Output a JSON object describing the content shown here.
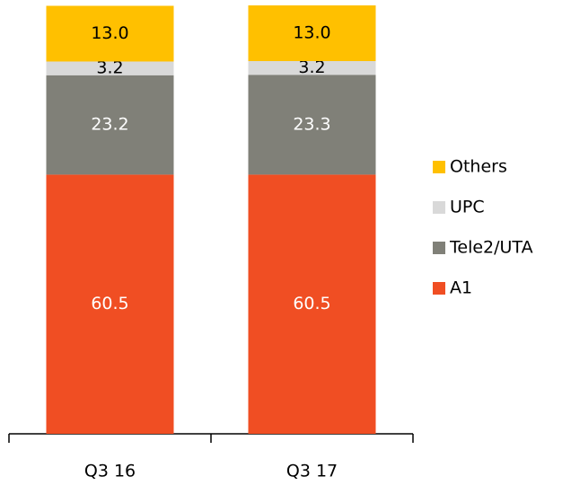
{
  "chart_data": {
    "type": "stacked_bar",
    "categories": [
      "Q3 16",
      "Q3 17"
    ],
    "series": [
      {
        "name": "A1",
        "color": "#f04e23",
        "values": [
          60.5,
          60.5
        ],
        "value_labels": [
          "60.5",
          "60.5"
        ]
      },
      {
        "name": "Tele2/UTA",
        "color": "#808078",
        "values": [
          23.2,
          23.3
        ],
        "value_labels": [
          "23.2",
          "23.3"
        ]
      },
      {
        "name": "UPC",
        "color": "#d9d9d9",
        "values": [
          3.2,
          3.2
        ],
        "value_labels": [
          "3.2",
          "3.2"
        ]
      },
      {
        "name": "Others",
        "color": "#ffc000",
        "values": [
          13.0,
          13.0
        ],
        "value_labels": [
          "13.0",
          "13.0"
        ]
      }
    ],
    "ylim": [
      0,
      100
    ]
  }
}
